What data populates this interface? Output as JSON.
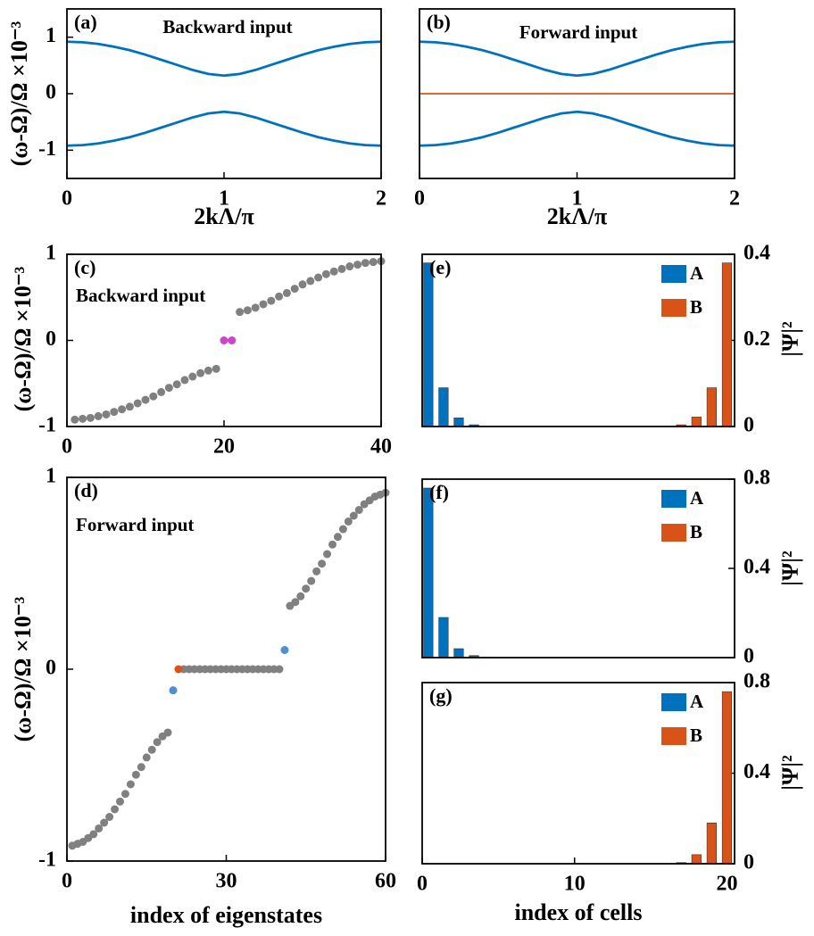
{
  "chart_data": [
    {
      "type": "line",
      "panel_label": "(a)",
      "annotation": "Backward input",
      "xlabel": "2kΛ/π",
      "ylabel": "(ω-Ω)/Ω ×10⁻³",
      "x": [
        0,
        0.1,
        0.2,
        0.3,
        0.4,
        0.5,
        0.6,
        0.7,
        0.8,
        0.9,
        1,
        1.1,
        1.2,
        1.3,
        1.4,
        1.5,
        1.6,
        1.7,
        1.8,
        1.9,
        2
      ],
      "series": [
        {
          "color": "#0072bd",
          "values": [
            0.92,
            0.91,
            0.88,
            0.83,
            0.77,
            0.69,
            0.6,
            0.51,
            0.42,
            0.35,
            0.32,
            0.35,
            0.42,
            0.51,
            0.6,
            0.69,
            0.77,
            0.83,
            0.88,
            0.91,
            0.92
          ]
        },
        {
          "color": "#0072bd",
          "values": [
            -0.92,
            -0.91,
            -0.88,
            -0.83,
            -0.77,
            -0.69,
            -0.6,
            -0.51,
            -0.42,
            -0.35,
            -0.32,
            -0.35,
            -0.42,
            -0.51,
            -0.6,
            -0.69,
            -0.77,
            -0.83,
            -0.88,
            -0.91,
            -0.92
          ]
        }
      ],
      "xlim": [
        0,
        2
      ],
      "xticks": [
        0,
        1,
        2
      ],
      "ylim": [
        -1.5,
        1.5
      ],
      "yticks": [
        -1,
        0,
        1
      ]
    },
    {
      "type": "line",
      "panel_label": "(b)",
      "annotation": "Forward input",
      "xlabel": "2kΛ/π",
      "x": [
        0,
        0.1,
        0.2,
        0.3,
        0.4,
        0.5,
        0.6,
        0.7,
        0.8,
        0.9,
        1,
        1.1,
        1.2,
        1.3,
        1.4,
        1.5,
        1.6,
        1.7,
        1.8,
        1.9,
        2
      ],
      "series": [
        {
          "color": "#0072bd",
          "values": [
            0.92,
            0.91,
            0.88,
            0.83,
            0.77,
            0.69,
            0.6,
            0.51,
            0.42,
            0.35,
            0.32,
            0.35,
            0.42,
            0.51,
            0.6,
            0.69,
            0.77,
            0.83,
            0.88,
            0.91,
            0.92
          ]
        },
        {
          "color": "#0072bd",
          "values": [
            -0.92,
            -0.91,
            -0.88,
            -0.83,
            -0.77,
            -0.69,
            -0.6,
            -0.51,
            -0.42,
            -0.35,
            -0.32,
            -0.35,
            -0.42,
            -0.51,
            -0.6,
            -0.69,
            -0.77,
            -0.83,
            -0.88,
            -0.91,
            -0.92
          ]
        },
        {
          "color": "#d95319",
          "x": [
            0,
            2
          ],
          "values": [
            0,
            0
          ]
        }
      ],
      "xlim": [
        0,
        2
      ],
      "xticks": [
        0,
        1,
        2
      ],
      "ylim": [
        -1.5,
        1.5
      ]
    },
    {
      "type": "scatter",
      "panel_label": "(c)",
      "annotation": "Backward input",
      "ylabel": "(ω-Ω)/Ω ×10⁻³",
      "series": [
        {
          "color": "#808080",
          "x": [
            1,
            2,
            3,
            4,
            5,
            6,
            7,
            8,
            9,
            10,
            11,
            12,
            13,
            14,
            15,
            16,
            17,
            18,
            19,
            22,
            23,
            24,
            25,
            26,
            27,
            28,
            29,
            30,
            31,
            32,
            33,
            34,
            35,
            36,
            37,
            38,
            39,
            40
          ],
          "values": [
            -0.92,
            -0.91,
            -0.9,
            -0.88,
            -0.86,
            -0.83,
            -0.8,
            -0.77,
            -0.73,
            -0.69,
            -0.65,
            -0.6,
            -0.55,
            -0.51,
            -0.46,
            -0.42,
            -0.38,
            -0.35,
            -0.33,
            0.33,
            0.35,
            0.38,
            0.42,
            0.46,
            0.51,
            0.55,
            0.6,
            0.65,
            0.69,
            0.73,
            0.77,
            0.8,
            0.83,
            0.86,
            0.88,
            0.9,
            0.91,
            0.92
          ]
        },
        {
          "color": "#cc44cc",
          "x": [
            20,
            21
          ],
          "values": [
            0,
            0
          ]
        }
      ],
      "xlim": [
        0,
        40
      ],
      "xticks": [
        0,
        20,
        40
      ],
      "ylim": [
        -1,
        1
      ],
      "yticks": [
        -1,
        0,
        1
      ]
    },
    {
      "type": "scatter",
      "panel_label": "(d)",
      "annotation": "Forward input",
      "xlabel": "index of eigenstates",
      "ylabel": "(ω-Ω)/Ω ×10⁻³",
      "series": [
        {
          "color": "#808080",
          "x": [
            1,
            2,
            3,
            4,
            5,
            6,
            7,
            8,
            9,
            10,
            11,
            12,
            13,
            14,
            15,
            16,
            17,
            18,
            19,
            22,
            23,
            24,
            25,
            26,
            27,
            28,
            29,
            30,
            31,
            32,
            33,
            34,
            35,
            36,
            37,
            38,
            39,
            40,
            42,
            43,
            44,
            45,
            46,
            47,
            48,
            49,
            50,
            51,
            52,
            53,
            54,
            55,
            56,
            57,
            58,
            59,
            60
          ],
          "values": [
            -0.92,
            -0.91,
            -0.9,
            -0.88,
            -0.86,
            -0.83,
            -0.8,
            -0.77,
            -0.73,
            -0.69,
            -0.65,
            -0.6,
            -0.55,
            -0.51,
            -0.46,
            -0.42,
            -0.38,
            -0.35,
            -0.33,
            0,
            0,
            0,
            0,
            0,
            0,
            0,
            0,
            0,
            0,
            0,
            0,
            0,
            0,
            0,
            0,
            0,
            0,
            0,
            0.33,
            0.35,
            0.38,
            0.42,
            0.46,
            0.51,
            0.55,
            0.6,
            0.65,
            0.69,
            0.73,
            0.77,
            0.8,
            0.83,
            0.86,
            0.88,
            0.9,
            0.91,
            0.92
          ]
        },
        {
          "color": "#4d8fd0",
          "x": [
            20,
            41
          ],
          "values": [
            -0.11,
            0.1
          ]
        },
        {
          "color": "#d95319",
          "x": [
            21
          ],
          "values": [
            0
          ]
        }
      ],
      "xlim": [
        0,
        60
      ],
      "xticks": [
        0,
        30,
        60
      ],
      "ylim": [
        -1,
        1
      ],
      "yticks": [
        -1,
        0,
        1
      ]
    },
    {
      "type": "bar",
      "panel_label": "(e)",
      "ylabel": "|Ψ|²",
      "y_axis_side": "right",
      "x": [
        1,
        2,
        3,
        4,
        5,
        6,
        7,
        8,
        9,
        10,
        11,
        12,
        13,
        14,
        15,
        16,
        17,
        18,
        19,
        20
      ],
      "series": [
        {
          "name": "A",
          "color": "#0072bd",
          "values": [
            0.38,
            0.09,
            0.02,
            0.004,
            0,
            0,
            0,
            0,
            0,
            0,
            0,
            0,
            0,
            0,
            0,
            0,
            0,
            0,
            0,
            0
          ]
        },
        {
          "name": "B",
          "color": "#d95319",
          "values": [
            0,
            0,
            0,
            0,
            0,
            0,
            0,
            0,
            0,
            0,
            0,
            0,
            0,
            0,
            0,
            0,
            0.004,
            0.022,
            0.09,
            0.38
          ]
        }
      ],
      "xlim": [
        0,
        20.5
      ],
      "ylim": [
        0,
        0.4
      ],
      "yticks": [
        0,
        0.2,
        0.4
      ]
    },
    {
      "type": "bar",
      "panel_label": "(f)",
      "ylabel": "|Ψ|²",
      "y_axis_side": "right",
      "x": [
        1,
        2,
        3,
        4,
        5,
        6,
        7,
        8,
        9,
        10,
        11,
        12,
        13,
        14,
        15,
        16,
        17,
        18,
        19,
        20
      ],
      "series": [
        {
          "name": "A",
          "color": "#0072bd",
          "values": [
            0.76,
            0.18,
            0.04,
            0.009,
            0.002,
            0,
            0,
            0,
            0,
            0,
            0,
            0,
            0,
            0,
            0,
            0,
            0,
            0,
            0,
            0
          ]
        },
        {
          "name": "B",
          "color": "#d95319",
          "values": [
            0,
            0,
            0,
            0,
            0,
            0,
            0,
            0,
            0,
            0,
            0,
            0,
            0,
            0,
            0,
            0,
            0,
            0,
            0,
            0
          ]
        }
      ],
      "xlim": [
        0,
        20.5
      ],
      "ylim": [
        0,
        0.8
      ],
      "yticks": [
        0,
        0.4,
        0.8
      ]
    },
    {
      "type": "bar",
      "panel_label": "(g)",
      "xlabel": "index of cells",
      "ylabel": "|Ψ|²",
      "y_axis_side": "right",
      "x": [
        1,
        2,
        3,
        4,
        5,
        6,
        7,
        8,
        9,
        10,
        11,
        12,
        13,
        14,
        15,
        16,
        17,
        18,
        19,
        20
      ],
      "series": [
        {
          "name": "A",
          "color": "#0072bd",
          "values": [
            0,
            0,
            0,
            0,
            0,
            0,
            0,
            0,
            0,
            0,
            0,
            0,
            0,
            0,
            0,
            0,
            0,
            0,
            0,
            0
          ]
        },
        {
          "name": "B",
          "color": "#d95319",
          "values": [
            0,
            0,
            0,
            0,
            0,
            0,
            0,
            0,
            0,
            0,
            0,
            0,
            0,
            0,
            0,
            0,
            0.005,
            0.04,
            0.18,
            0.76
          ]
        }
      ],
      "xlim": [
        0,
        20.5
      ],
      "xticks": [
        0,
        10,
        20
      ],
      "ylim": [
        0,
        0.8
      ],
      "yticks": [
        0,
        0.4,
        0.8
      ]
    }
  ]
}
